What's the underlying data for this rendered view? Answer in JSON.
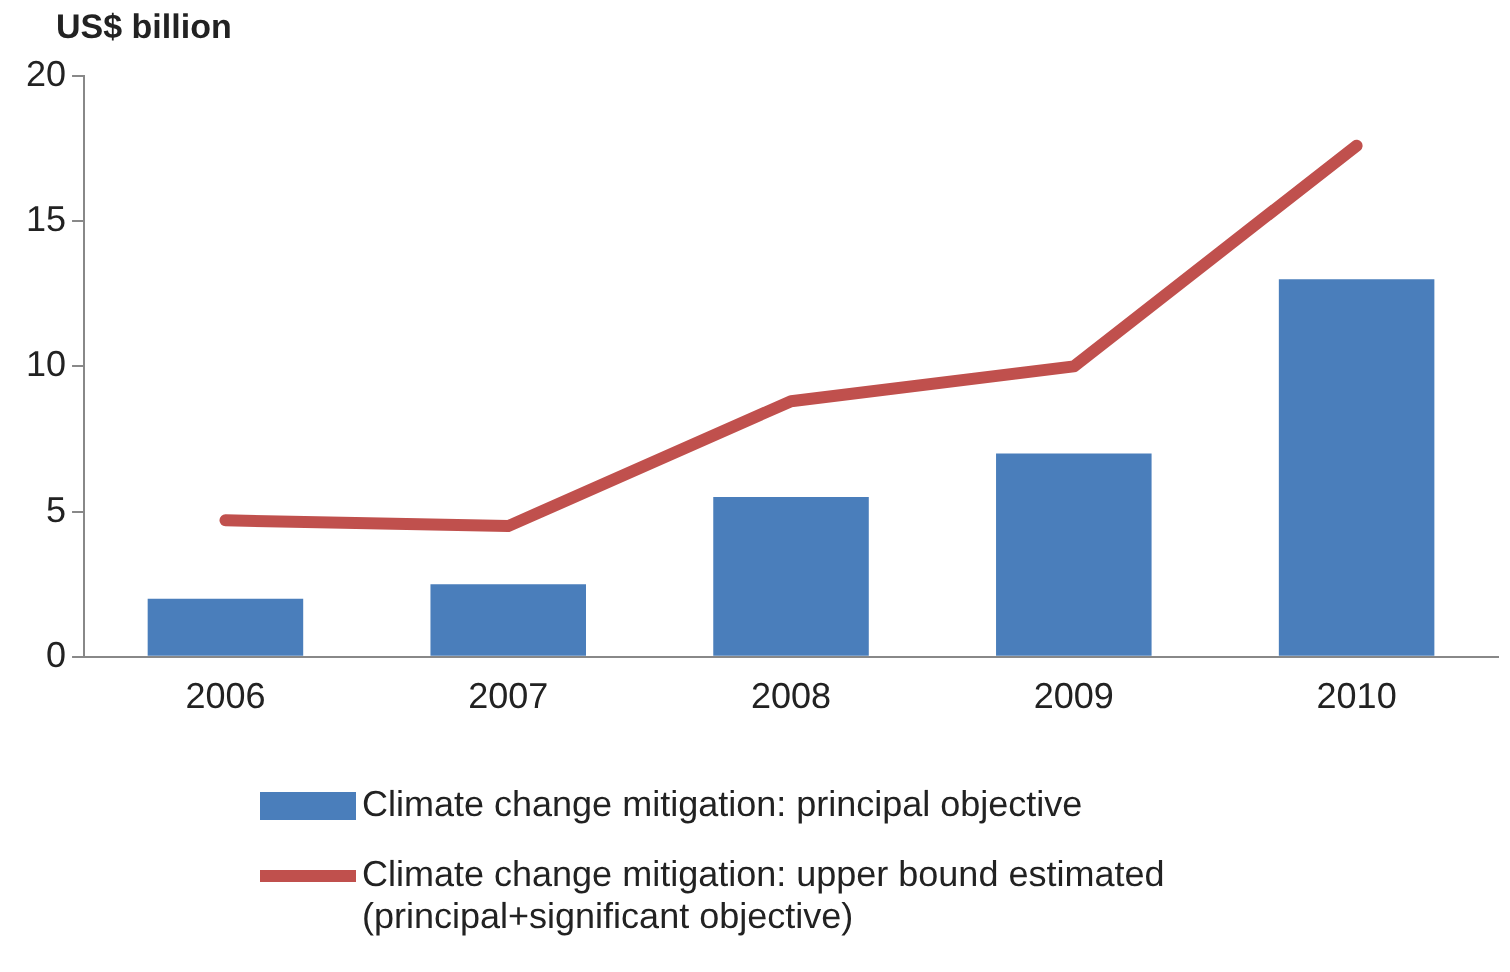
{
  "chart_data": {
    "type": "bar",
    "ylabel": "US$ billion",
    "categories": [
      "2006",
      "2007",
      "2008",
      "2009",
      "2010"
    ],
    "series": [
      {
        "name": "Climate change mitigation: principal objective",
        "color": "#4a7ebb",
        "values": [
          2.0,
          2.5,
          5.5,
          7.0,
          13.0
        ]
      },
      {
        "name": "Climate change mitigation: upper bound estimated (principal+significant objective)",
        "type": "line",
        "color": "#c0504d",
        "values": [
          4.7,
          4.5,
          8.8,
          10.0,
          17.6
        ]
      }
    ],
    "ylim": [
      0,
      20
    ],
    "yticks": [
      0,
      5,
      10,
      15,
      20
    ],
    "grid": false,
    "legend": "bottom",
    "marker": "none"
  }
}
